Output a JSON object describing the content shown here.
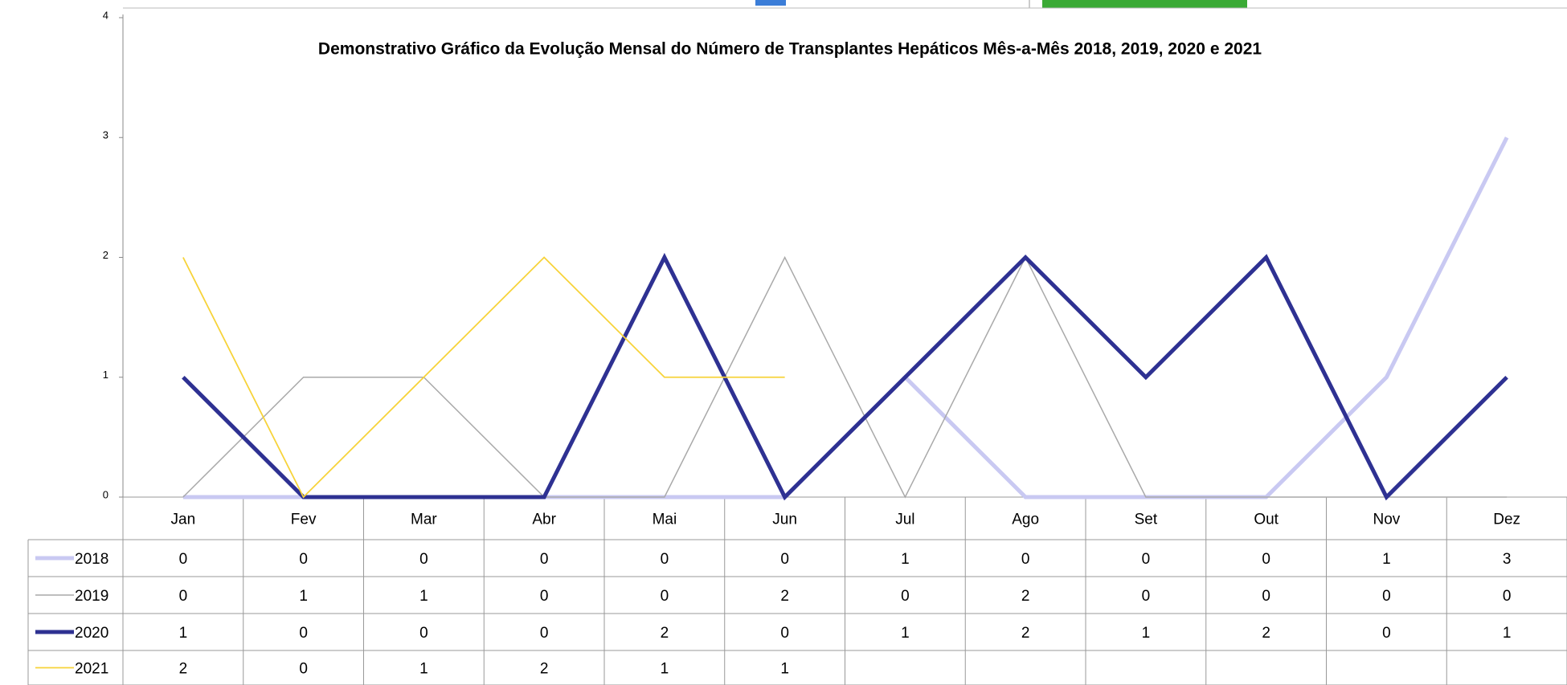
{
  "chart_data": {
    "type": "line",
    "title": "Demonstrativo Gráfico da Evolução Mensal do Número de Transplantes Hepáticos Mês-a-Mês 2018, 2019, 2020 e 2021",
    "categories": [
      "Jan",
      "Fev",
      "Mar",
      "Abr",
      "Mai",
      "Jun",
      "Jul",
      "Ago",
      "Set",
      "Out",
      "Nov",
      "Dez"
    ],
    "series": [
      {
        "name": "2018",
        "color": "#c9c9f2",
        "values": [
          0,
          0,
          0,
          0,
          0,
          0,
          1,
          0,
          0,
          0,
          1,
          3
        ]
      },
      {
        "name": "2019",
        "color": "#a9a9a9",
        "values": [
          0,
          1,
          1,
          0,
          0,
          2,
          0,
          2,
          0,
          0,
          0,
          0
        ]
      },
      {
        "name": "2020",
        "color": "#2e3192",
        "values": [
          1,
          0,
          0,
          0,
          2,
          0,
          1,
          2,
          1,
          2,
          0,
          1
        ]
      },
      {
        "name": "2021",
        "color": "#f7d33a",
        "values": [
          2,
          0,
          1,
          2,
          1,
          1,
          null,
          null,
          null,
          null,
          null,
          null
        ]
      }
    ],
    "ylim": [
      0,
      4
    ],
    "yticks": [
      0,
      1,
      2,
      3,
      4
    ]
  }
}
